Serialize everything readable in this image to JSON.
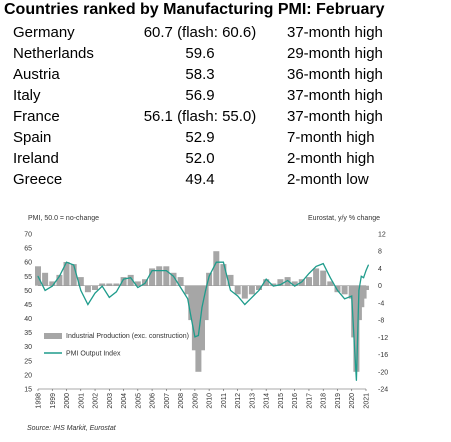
{
  "header": {
    "title": "Countries ranked by Manufacturing PMI: February"
  },
  "ranking": [
    {
      "country": "Germany",
      "value": "60.7 (flash: 60.6)",
      "note": "37-month high"
    },
    {
      "country": "Netherlands",
      "value": "59.6",
      "note": "29-month high"
    },
    {
      "country": "Austria",
      "value": "58.3",
      "note": "36-month high"
    },
    {
      "country": "Italy",
      "value": "56.9",
      "note": "37-month high"
    },
    {
      "country": "France",
      "value": "56.1 (flash: 55.0)",
      "note": "37-month high"
    },
    {
      "country": "Spain",
      "value": "52.9",
      "note": "7-month high"
    },
    {
      "country": "Ireland",
      "value": "52.0",
      "note": "2-month high"
    },
    {
      "country": "Greece",
      "value": "49.4",
      "note": "2-month low"
    }
  ],
  "chart_data": {
    "type": "line",
    "left_axis_caption": "PMI, 50.0 = no-change",
    "right_axis_caption": "Eurostat, y/y % change",
    "x_ticks": [
      "1998",
      "1999",
      "2000",
      "2001",
      "2002",
      "2003",
      "2004",
      "2005",
      "2006",
      "2007",
      "2008",
      "2009",
      "2010",
      "2011",
      "2012",
      "2013",
      "2014",
      "2015",
      "2016",
      "2017",
      "2018",
      "2019",
      "2020",
      "2021"
    ],
    "ylim_left": [
      15,
      70
    ],
    "yticks_left": [
      70,
      65,
      60,
      55,
      50,
      45,
      40,
      35,
      30,
      25,
      20,
      15
    ],
    "ylim_right": [
      -24,
      12
    ],
    "yticks_right": [
      12,
      8,
      4,
      0,
      -4,
      -8,
      -12,
      -16,
      -20,
      -24
    ],
    "grid": false,
    "legend_position": "bottom-left",
    "series": [
      {
        "name": "Industrial Production (exc. construction)",
        "kind": "bar",
        "axis": "right",
        "color": "#a6a6a6",
        "x": [
          1998.0,
          1998.5,
          1999.0,
          1999.5,
          2000.0,
          2000.5,
          2001.0,
          2001.5,
          2002.0,
          2002.5,
          2003.0,
          2003.5,
          2004.0,
          2004.5,
          2005.0,
          2005.5,
          2006.0,
          2006.5,
          2007.0,
          2007.5,
          2008.0,
          2008.25,
          2008.5,
          2008.75,
          2009.0,
          2009.25,
          2009.5,
          2009.75,
          2010.0,
          2010.5,
          2011.0,
          2011.5,
          2012.0,
          2012.5,
          2013.0,
          2013.5,
          2014.0,
          2014.5,
          2015.0,
          2015.5,
          2016.0,
          2016.5,
          2017.0,
          2017.5,
          2018.0,
          2018.5,
          2019.0,
          2019.5,
          2020.0,
          2020.17,
          2020.33,
          2020.5,
          2020.67,
          2020.83,
          2021.0
        ],
        "values": [
          4.5,
          3.0,
          1.0,
          2.5,
          5.5,
          5.0,
          2.0,
          -1.5,
          -1.0,
          0.5,
          0.5,
          0.5,
          2.0,
          2.5,
          1.0,
          1.5,
          4.0,
          4.5,
          4.5,
          3.0,
          2.0,
          0.0,
          -2.0,
          -8.0,
          -15.0,
          -20.0,
          -15.0,
          -8.0,
          3.0,
          8.0,
          5.0,
          2.5,
          -2.0,
          -3.0,
          -2.0,
          -1.0,
          1.5,
          0.5,
          1.5,
          2.0,
          1.0,
          1.5,
          2.0,
          4.0,
          3.5,
          1.0,
          -1.5,
          -2.0,
          -3.0,
          -12.0,
          -20.0,
          -8.0,
          -5.0,
          -3.0,
          -1.0
        ]
      },
      {
        "name": "PMI Output Index",
        "kind": "line",
        "axis": "left",
        "color": "#1f9c8c",
        "x": [
          1998.0,
          1998.5,
          1999.0,
          1999.5,
          2000.0,
          2000.5,
          2001.0,
          2001.5,
          2002.0,
          2002.5,
          2003.0,
          2003.5,
          2004.0,
          2004.5,
          2005.0,
          2005.5,
          2006.0,
          2006.5,
          2007.0,
          2007.5,
          2008.0,
          2008.5,
          2008.75,
          2009.0,
          2009.25,
          2009.5,
          2009.75,
          2010.0,
          2010.5,
          2011.0,
          2011.5,
          2012.0,
          2012.5,
          2013.0,
          2013.5,
          2014.0,
          2014.5,
          2015.0,
          2015.5,
          2016.0,
          2016.5,
          2017.0,
          2017.5,
          2018.0,
          2018.5,
          2019.0,
          2019.5,
          2020.0,
          2020.17,
          2020.33,
          2020.5,
          2020.67,
          2020.83,
          2021.0,
          2021.17
        ],
        "values": [
          55.0,
          50.0,
          51.5,
          55.0,
          60.0,
          59.0,
          50.0,
          45.0,
          49.0,
          51.5,
          47.5,
          49.5,
          54.0,
          54.5,
          51.0,
          52.5,
          57.0,
          57.0,
          57.0,
          55.0,
          51.0,
          47.0,
          40.0,
          33.5,
          34.0,
          44.0,
          50.0,
          55.0,
          60.0,
          60.0,
          50.0,
          48.0,
          45.0,
          47.5,
          50.0,
          54.0,
          51.5,
          52.0,
          53.5,
          51.5,
          53.0,
          56.0,
          58.5,
          59.5,
          54.5,
          50.0,
          47.0,
          48.0,
          32.0,
          18.0,
          50.0,
          55.0,
          54.5,
          57.0,
          59.0
        ]
      }
    ]
  },
  "footer": {
    "source": "Source: IHS Markit, Eurostat"
  }
}
